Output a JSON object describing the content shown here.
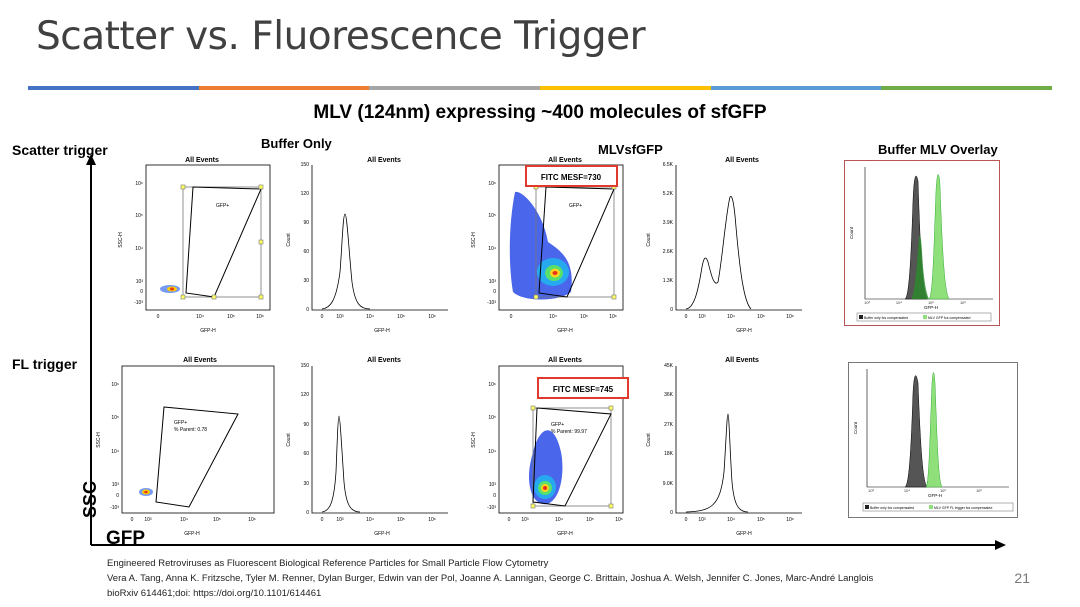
{
  "slide": {
    "title": "Scatter vs. Fluorescence Trigger",
    "subtitle": "MLV (124nm) expressing ~400 molecules of sfGFP",
    "number": "21",
    "accent_colors": [
      "#4472c4",
      "#ed7d31",
      "#a5a5a5",
      "#ffc000",
      "#5b9bd5",
      "#70ad47"
    ]
  },
  "rows": {
    "scatter": "Scatter trigger",
    "fl": "FL trigger"
  },
  "columns": {
    "buffer": "Buffer Only",
    "mlv": "MLVsfGFP",
    "overlay": "Buffer MLV Overlay"
  },
  "axes": {
    "ssc": "SSC",
    "gfp": "GFP"
  },
  "plot_common": {
    "title": "All Events",
    "xlabel": "GFP-H",
    "ylabel_dot": "SSC-H",
    "ylabel_hist": "Count",
    "gate_label": "GFP+"
  },
  "annotations": {
    "mesf_scatter": "FITC MESF=730",
    "mesf_fl": "FITC MESF=745",
    "parent_buffer": "% Parent: 0.78",
    "parent_mlv": "% Parent: 99.97"
  },
  "ticks": {
    "dot_x": [
      "0",
      "10⁴",
      "10⁵",
      "10⁶"
    ],
    "dot_x_fl": [
      "0",
      "10³",
      "10⁴",
      "10⁵",
      "10⁶"
    ],
    "dot_y": [
      "10⁶",
      "10⁵",
      "10⁴",
      "10³",
      "0",
      "-10³"
    ],
    "hist_x": [
      "0",
      "10³",
      "10⁴",
      "10⁵",
      "10⁶"
    ],
    "hist_y_buffer": [
      "150",
      "120",
      "90",
      "60",
      "30",
      "0"
    ],
    "hist_y_mlv_scatter": [
      "6.5K",
      "5.2K",
      "3.9K",
      "2.6K",
      "1.3K",
      "0"
    ],
    "hist_y_mlv_fl": [
      "45K",
      "36K",
      "27K",
      "18K",
      "9.0K",
      "0"
    ]
  },
  "overlay": {
    "legend_scatter_a": "Buffer only fcs compensated",
    "legend_scatter_b": "MLV GFP fcs compensated",
    "legend_fl_a": "Buffer only fcs compensated",
    "legend_fl_b": "MLV GFP FL trigger fcs compensated",
    "xlabel": "GFP-H",
    "ylabel": "Count",
    "color_buffer": "#555555",
    "color_mlv": "#8fe07a"
  },
  "reference": {
    "line1": "Engineered Retroviruses as Fluorescent Biological Reference Particles for Small Particle Flow Cytometry",
    "line2": "Vera A. Tang, Anna K. Fritzsche, Tyler M. Renner, Dylan Burger, Edwin van der Pol, Joanne A. Lannigan, George C. Brittain, Joshua A. Welsh, Jennifer C. Jones, Marc-André Langlois",
    "line3": "bioRxiv 614461;doi: https://doi.org/10.1101/614461"
  }
}
